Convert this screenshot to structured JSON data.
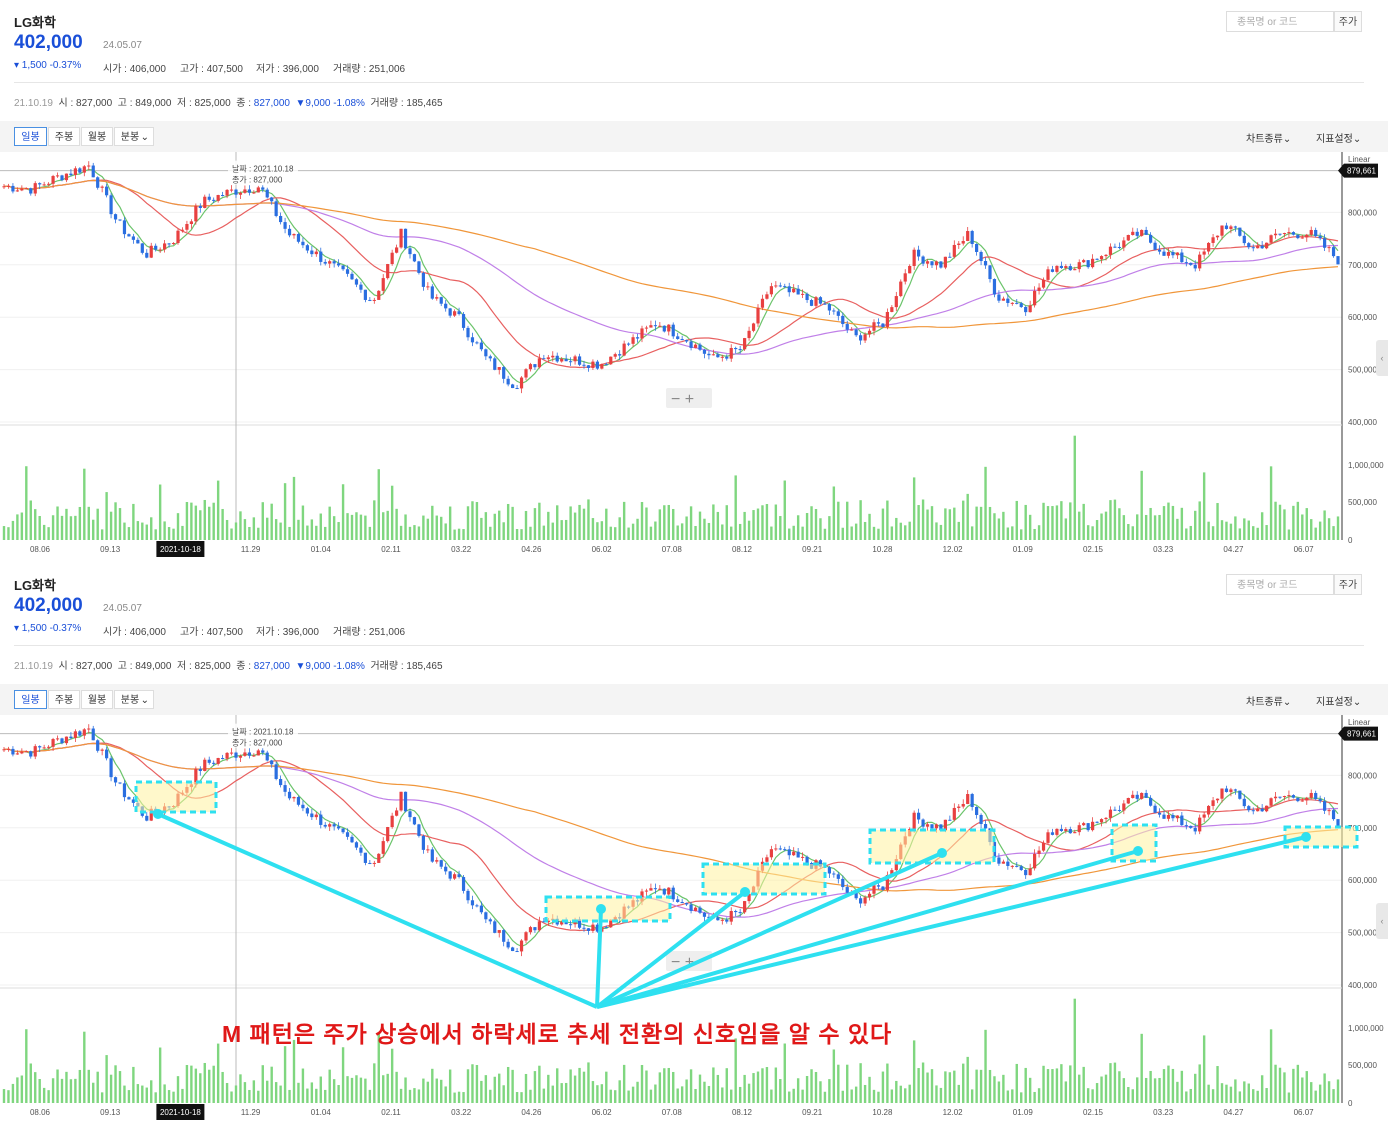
{
  "stock": {
    "name": "LG화학",
    "price": "402,000",
    "date": "24.05.07",
    "change": "▾ 1,500 -0.37%",
    "open_label": "시가 : 406,000",
    "high_label": "고가 : 407,500",
    "low_label": "저가 : 396,000",
    "volume_label": "거래량 : 251,006"
  },
  "search": {
    "placeholder": "종목명 or 코드",
    "button": "주가"
  },
  "history": {
    "date": "21.10.19",
    "open": "시 : 827,000",
    "high": "고 : 849,000",
    "low": "저 : 825,000",
    "close_label": "종 :",
    "close_value": "827,000",
    "change": "▼9,000 -1.08%",
    "volume": "거래량 : 185,465"
  },
  "toolbar": {
    "tabs": [
      "일봉",
      "주봉",
      "월봉",
      "분봉"
    ],
    "active_tab": "일봉",
    "chart_type": "차트종류",
    "indicator": "지표설정"
  },
  "chart_data": {
    "type": "candlestick",
    "scale_label": "Linear",
    "current_value": "879,661",
    "tooltip": {
      "date": "날짜 : 2021.10.18",
      "close": "종가 : 827,000"
    },
    "x_ticks": [
      "08.06",
      "09.13",
      "2021-10-18",
      "11.29",
      "01.04",
      "02.11",
      "03.22",
      "04.26",
      "06.02",
      "07.08",
      "08.12",
      "09.21",
      "10.28",
      "12.02",
      "01.09",
      "02.15",
      "03.23",
      "04.27",
      "06.07"
    ],
    "y_ticks_price": [
      "800,000",
      "700,000",
      "600,000",
      "500,000",
      "400,000"
    ],
    "y_ticks_volume": [
      "1,000,000",
      "500,000",
      "0"
    ],
    "ylim_price": [
      400000,
      900000
    ],
    "close_series": [
      850000,
      845000,
      870000,
      890000,
      780000,
      720000,
      750000,
      820000,
      840000,
      850000,
      760000,
      720000,
      680000,
      630000,
      760000,
      640000,
      600000,
      520000,
      470000,
      530000,
      520000,
      510000,
      550000,
      590000,
      560000,
      520000,
      540000,
      660000,
      640000,
      620000,
      560000,
      590000,
      720000,
      700000,
      760000,
      640000,
      620000,
      700000,
      700000,
      730000,
      760000,
      720000,
      700000,
      780000,
      730000,
      760000,
      760000,
      710000
    ]
  },
  "annotation": "M 패턴은 주가 상승에서 하락세로 추세 전환의 신호임을 알 수 있다",
  "colors": {
    "up": "#e84040",
    "down": "#2a6ee0",
    "volume": "#7fd67f",
    "highlight": "#2ee0f0",
    "annotation": "#e01818"
  }
}
